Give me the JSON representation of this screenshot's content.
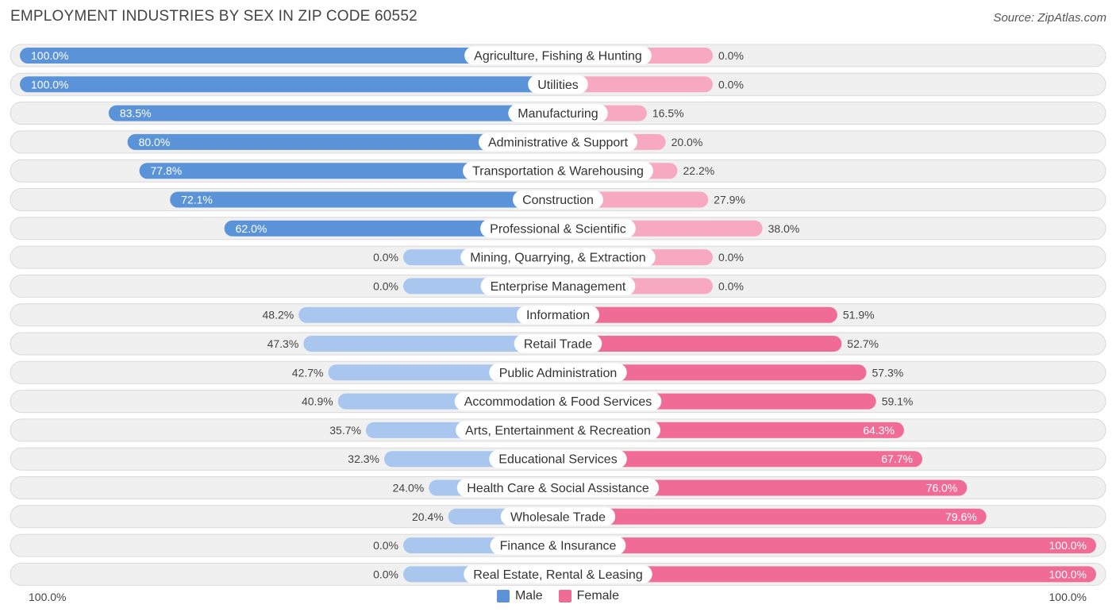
{
  "title": "EMPLOYMENT INDUSTRIES BY SEX IN ZIP CODE 60552",
  "source": "Source: ZipAtlas.com",
  "colors": {
    "male_strong": "#5b93d9",
    "male_light": "#a9c7ee",
    "female_strong": "#f06b96",
    "female_light": "#f6a9c1",
    "row_bg": "#f0f0f0",
    "row_border": "#d9d9d9"
  },
  "legend": {
    "male": "Male",
    "female": "Female"
  },
  "axis": {
    "left_label": "100.0%",
    "right_label": "100.0%"
  },
  "chart_data": {
    "type": "bar",
    "orientation": "horizontal-diverging",
    "title": "EMPLOYMENT INDUSTRIES BY SEX IN ZIP CODE 60552",
    "xlim": [
      -100,
      100
    ],
    "categories": [
      "Agriculture, Fishing & Hunting",
      "Utilities",
      "Manufacturing",
      "Administrative & Support",
      "Transportation & Warehousing",
      "Construction",
      "Professional & Scientific",
      "Mining, Quarrying, & Extraction",
      "Enterprise Management",
      "Information",
      "Retail Trade",
      "Public Administration",
      "Accommodation & Food Services",
      "Arts, Entertainment & Recreation",
      "Educational Services",
      "Health Care & Social Assistance",
      "Wholesale Trade",
      "Finance & Insurance",
      "Real Estate, Rental & Leasing"
    ],
    "series": [
      {
        "name": "Male",
        "values": [
          100.0,
          100.0,
          83.5,
          80.0,
          77.8,
          72.1,
          62.0,
          0.0,
          0.0,
          48.2,
          47.3,
          42.7,
          40.9,
          35.7,
          32.3,
          24.0,
          20.4,
          0.0,
          0.0
        ],
        "labels": [
          "100.0%",
          "100.0%",
          "83.5%",
          "80.0%",
          "77.8%",
          "72.1%",
          "62.0%",
          "0.0%",
          "0.0%",
          "48.2%",
          "47.3%",
          "42.7%",
          "40.9%",
          "35.7%",
          "32.3%",
          "24.0%",
          "20.4%",
          "0.0%",
          "0.0%"
        ]
      },
      {
        "name": "Female",
        "values": [
          0.0,
          0.0,
          16.5,
          20.0,
          22.2,
          27.9,
          38.0,
          0.0,
          0.0,
          51.9,
          52.7,
          57.3,
          59.1,
          64.3,
          67.7,
          76.0,
          79.6,
          100.0,
          100.0
        ],
        "labels": [
          "0.0%",
          "0.0%",
          "16.5%",
          "20.0%",
          "22.2%",
          "27.9%",
          "38.0%",
          "0.0%",
          "0.0%",
          "51.9%",
          "52.7%",
          "57.3%",
          "59.1%",
          "64.3%",
          "67.7%",
          "76.0%",
          "79.6%",
          "100.0%",
          "100.0%"
        ]
      }
    ],
    "legend_position": "bottom-center"
  }
}
